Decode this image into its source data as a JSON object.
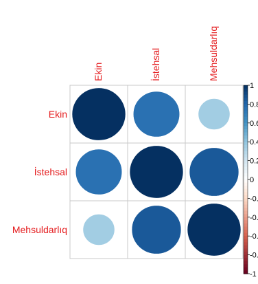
{
  "chart_data": {
    "type": "heatmap",
    "variables": [
      "Ekin",
      "İstehsal",
      "Mehsuldarlıq"
    ],
    "matrix": [
      [
        1.0,
        0.75,
        0.35
      ],
      [
        0.75,
        1.0,
        0.85
      ],
      [
        0.35,
        0.85,
        1.0
      ]
    ],
    "colorbar_ticks": [
      "1",
      "0.8",
      "0.6",
      "0.4",
      "0.2",
      "0",
      "-0.2",
      "-0.4",
      "-0.6",
      "-0.8",
      "-1"
    ],
    "colorbar_range": [
      -1,
      1
    ],
    "shape": "circle",
    "colors": {
      "label": "#e41a1c",
      "grid": "#c8c8c8",
      "strong_positive": "#053061",
      "negative": "#67001f",
      "neutral": "#ffffff"
    },
    "grid": true
  }
}
